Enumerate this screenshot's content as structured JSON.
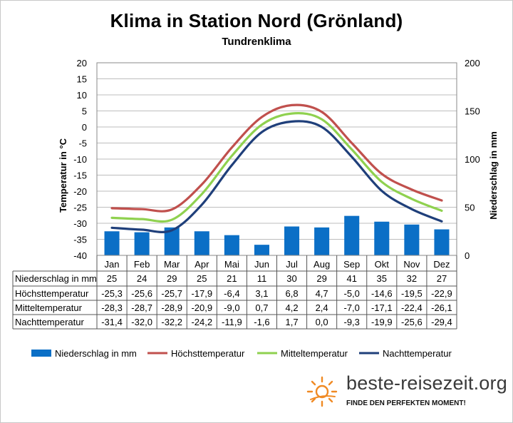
{
  "chart_data": {
    "type": "bar+line",
    "title": "Klima in Station Nord (Grönland)",
    "subtitle": "Tundrenklima",
    "ylabel_left": "Temperatur in °C",
    "ylabel_right": "Niederschlag in mm",
    "ylim_left": [
      -40,
      20
    ],
    "ylim_right": [
      0,
      200
    ],
    "yticks_left": [
      "20",
      "15",
      "10",
      "5",
      "0",
      "-5",
      "-10",
      "-15",
      "-20",
      "-25",
      "-30",
      "-35",
      "-40"
    ],
    "yticks_right": [
      "200",
      "150",
      "100",
      "50",
      "0"
    ],
    "categories": [
      "Jan",
      "Feb",
      "Mar",
      "Apr",
      "Mai",
      "Jun",
      "Jul",
      "Aug",
      "Sep",
      "Okt",
      "Nov",
      "Dez"
    ],
    "series": [
      {
        "name": "Niederschlag in mm",
        "kind": "bar",
        "axis": "right",
        "color": "#0b6fc6",
        "values": [
          25,
          24,
          29,
          25,
          21,
          11,
          30,
          29,
          41,
          35,
          32,
          27
        ],
        "labels": [
          "25",
          "24",
          "29",
          "25",
          "21",
          "11",
          "30",
          "29",
          "41",
          "35",
          "32",
          "27"
        ]
      },
      {
        "name": "Höchsttemperatur",
        "kind": "line",
        "axis": "left",
        "color": "#c0504d",
        "values": [
          -25.3,
          -25.6,
          -25.7,
          -17.9,
          -6.4,
          3.1,
          6.8,
          4.7,
          -5.0,
          -14.6,
          -19.5,
          -22.9
        ],
        "labels": [
          "-25,3",
          "-25,6",
          "-25,7",
          "-17,9",
          "-6,4",
          "3,1",
          "6,8",
          "4,7",
          "-5,0",
          "-14,6",
          "-19,5",
          "-22,9"
        ]
      },
      {
        "name": "Mitteltemperatur",
        "kind": "line",
        "axis": "left",
        "color": "#8fd14f",
        "values": [
          -28.3,
          -28.7,
          -28.9,
          -20.9,
          -9.0,
          0.7,
          4.2,
          2.4,
          -7.0,
          -17.1,
          -22.4,
          -26.1
        ],
        "labels": [
          "-28,3",
          "-28,7",
          "-28,9",
          "-20,9",
          "-9,0",
          "0,7",
          "4,2",
          "2,4",
          "-7,0",
          "-17,1",
          "-22,4",
          "-26,1"
        ]
      },
      {
        "name": "Nachttemperatur",
        "kind": "line",
        "axis": "left",
        "color": "#1f3f7a",
        "values": [
          -31.4,
          -32.0,
          -32.2,
          -24.2,
          -11.9,
          -1.6,
          1.7,
          0.0,
          -9.3,
          -19.9,
          -25.6,
          -29.4
        ],
        "labels": [
          "-31,4",
          "-32,0",
          "-32,2",
          "-24,2",
          "-11,9",
          "-1,6",
          "1,7",
          "0,0",
          "-9,3",
          "-19,9",
          "-25,6",
          "-29,4"
        ]
      }
    ],
    "legend": [
      "Niederschlag in mm",
      "Höchsttemperatur",
      "Mitteltemperatur",
      "Nachttemperatur"
    ],
    "table_row_labels": [
      "Niederschlag in mm",
      "Höchsttemperatur",
      "Mitteltemperatur",
      "Nachttemperatur"
    ],
    "grid": true
  },
  "brand": {
    "name": "beste-reisezeit.org",
    "slogan": "FINDE DEN PERFEKTEN MOMENT!",
    "icon": "sun-icon",
    "icon_color": "#f08a24"
  }
}
